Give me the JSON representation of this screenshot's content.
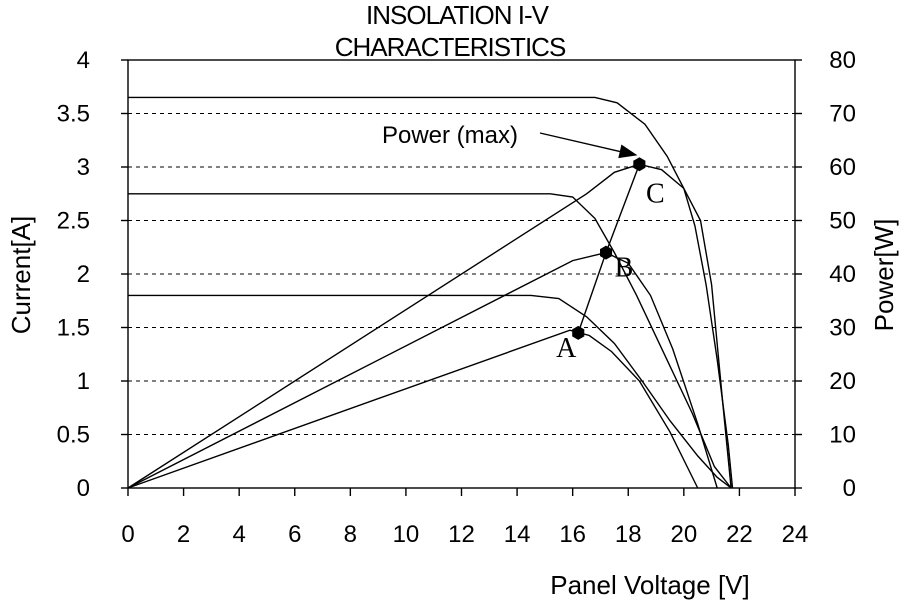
{
  "chart_data": {
    "type": "line",
    "title_lines": [
      "INSOLATION I-V",
      "CHARACTERISTICS"
    ],
    "xlabel": "Panel Voltage [V]",
    "ylabel_left": "Current[A]",
    "ylabel_right": "Power[W]",
    "xlim": [
      0,
      24
    ],
    "ylim_left": [
      0,
      4
    ],
    "ylim_right": [
      0,
      80
    ],
    "x_ticks": [
      "0",
      "2",
      "4",
      "6",
      "8",
      "10",
      "12",
      "14",
      "16",
      "18",
      "20",
      "22",
      "24"
    ],
    "y_left_ticks": [
      "0",
      "0.5",
      "1",
      "1.5",
      "2",
      "2.5",
      "3",
      "3.5",
      "4"
    ],
    "y_right_ticks": [
      "0",
      "10",
      "20",
      "30",
      "40",
      "50",
      "60",
      "70",
      "80"
    ],
    "grid": "horizontal-dashed",
    "series": [
      {
        "kind": "current",
        "axis": "left",
        "x": [
          0,
          14.5,
          15.5,
          16.5,
          17.5,
          18.5,
          19.5,
          20.5,
          21.2,
          21.7
        ],
        "y": [
          1.8,
          1.8,
          1.77,
          1.6,
          1.35,
          1.0,
          0.63,
          0.3,
          0.1,
          0
        ]
      },
      {
        "kind": "current",
        "axis": "left",
        "x": [
          0,
          15.2,
          16.0,
          16.8,
          17.5,
          18.3,
          19.3,
          20.3,
          21.1,
          21.7
        ],
        "y": [
          2.75,
          2.75,
          2.72,
          2.52,
          2.2,
          1.8,
          1.25,
          0.7,
          0.2,
          0
        ]
      },
      {
        "kind": "current",
        "axis": "left",
        "x": [
          0,
          16.8,
          17.6,
          18.6,
          19.4,
          20.0,
          20.4,
          20.8,
          21.2,
          21.6,
          21.75
        ],
        "y": [
          3.65,
          3.65,
          3.6,
          3.4,
          3.1,
          2.8,
          2.45,
          1.9,
          1.2,
          0.4,
          0
        ]
      },
      {
        "kind": "power",
        "axis": "right",
        "x": [
          0,
          15.9,
          16.6,
          17.4,
          18.4,
          19.5,
          20.5
        ],
        "y": [
          0,
          29.5,
          28.5,
          25.5,
          20.0,
          10.5,
          0
        ]
      },
      {
        "kind": "power",
        "axis": "right",
        "x": [
          0,
          16.0,
          17.2,
          18.0,
          18.8,
          19.6,
          20.5,
          21.2
        ],
        "y": [
          0,
          42.5,
          44.0,
          42.0,
          36.0,
          26.0,
          12.0,
          0
        ]
      },
      {
        "kind": "power",
        "axis": "right",
        "x": [
          0,
          16.5,
          17.5,
          18.4,
          19.2,
          20.0,
          20.6,
          21.0,
          21.4,
          21.7
        ],
        "y": [
          0,
          55.0,
          59.0,
          60.5,
          59.5,
          56.0,
          50.0,
          38.0,
          16.0,
          0
        ]
      }
    ],
    "mpp_points": [
      {
        "label": "A",
        "x": 16.2,
        "y": 29.0
      },
      {
        "label": "B",
        "x": 17.2,
        "y": 44.0
      },
      {
        "label": "C",
        "x": 18.4,
        "y": 60.5
      }
    ],
    "annotation": {
      "text": "Power (max)",
      "points_to": "C"
    }
  }
}
